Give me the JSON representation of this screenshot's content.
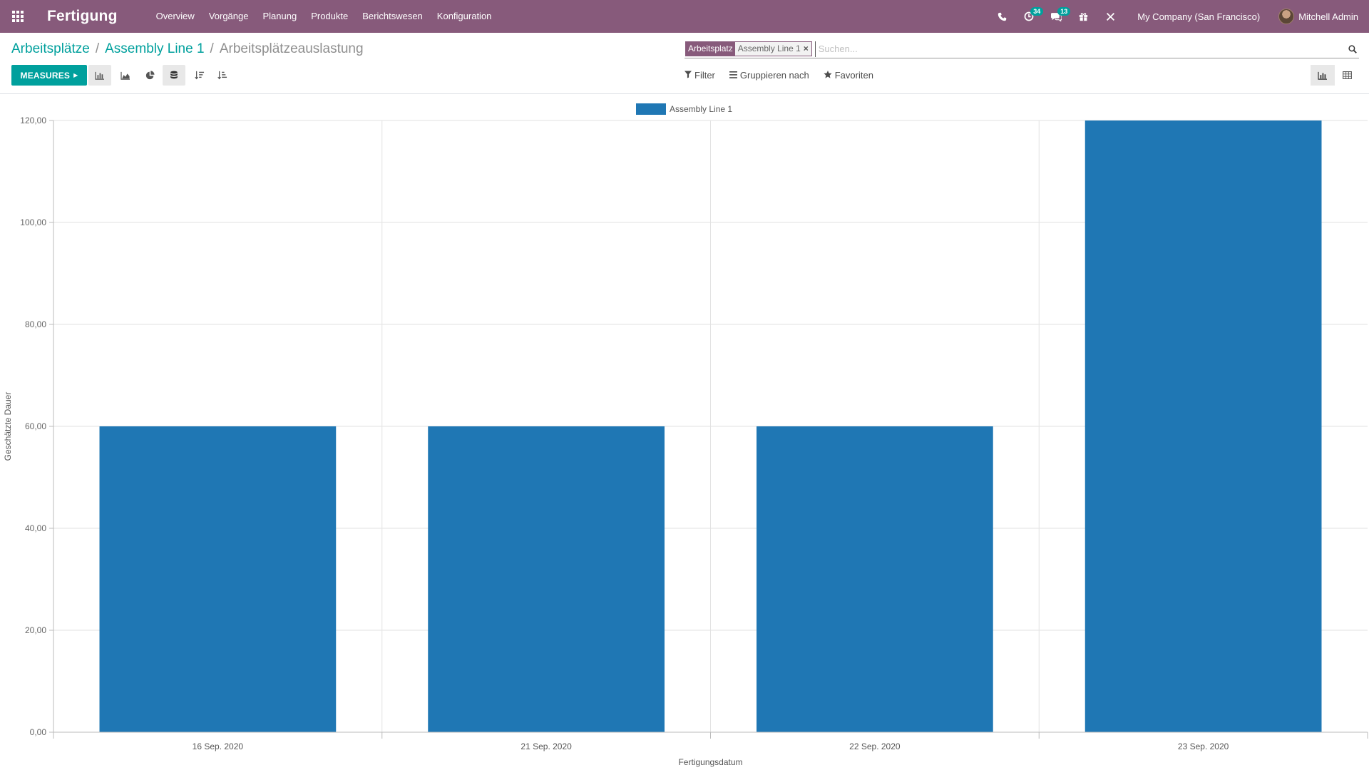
{
  "navbar": {
    "app_title": "Fertigung",
    "menu": [
      "Overview",
      "Vorgänge",
      "Planung",
      "Produkte",
      "Berichtswesen",
      "Konfiguration"
    ],
    "activity_count": "34",
    "message_count": "13",
    "company": "My Company (San Francisco)",
    "user": "Mitchell Admin",
    "icons": [
      "apps-grid-icon",
      "phone-icon",
      "activity-clock-icon",
      "chat-icon",
      "gift-icon",
      "debug-tools-icon"
    ],
    "bar_color": "#875a7b"
  },
  "breadcrumb": {
    "items": [
      "Arbeitsplätze",
      "Assembly Line 1"
    ],
    "current": "Arbeitsplätzeauslastung",
    "separator": "/"
  },
  "search": {
    "facet_label": "Arbeitsplatz",
    "facet_value": "Assembly Line 1",
    "facet_remove": "×",
    "placeholder": "Suchen..."
  },
  "toolbar": {
    "measures_label": "MEASURES",
    "filter_label": "Filter",
    "groupby_label": "Gruppieren nach",
    "favorites_label": "Favoriten",
    "accent": "#00a09d"
  },
  "chart_data": {
    "type": "bar",
    "categories": [
      "16 Sep. 2020",
      "21 Sep. 2020",
      "22 Sep. 2020",
      "23 Sep. 2020"
    ],
    "series": [
      {
        "name": "Assembly Line 1",
        "values": [
          60,
          60,
          60,
          120
        ],
        "color": "#1f77b4"
      }
    ],
    "ylim": [
      0,
      120
    ],
    "yticks": [
      0,
      20,
      40,
      60,
      80,
      100,
      120
    ],
    "ytick_labels": [
      "0,00",
      "20,00",
      "40,00",
      "60,00",
      "80,00",
      "100,00",
      "120,00"
    ],
    "xlabel": "Fertigungsdatum",
    "ylabel": "Geschätzte Dauer",
    "legend_position": "top-center",
    "grid": true
  }
}
